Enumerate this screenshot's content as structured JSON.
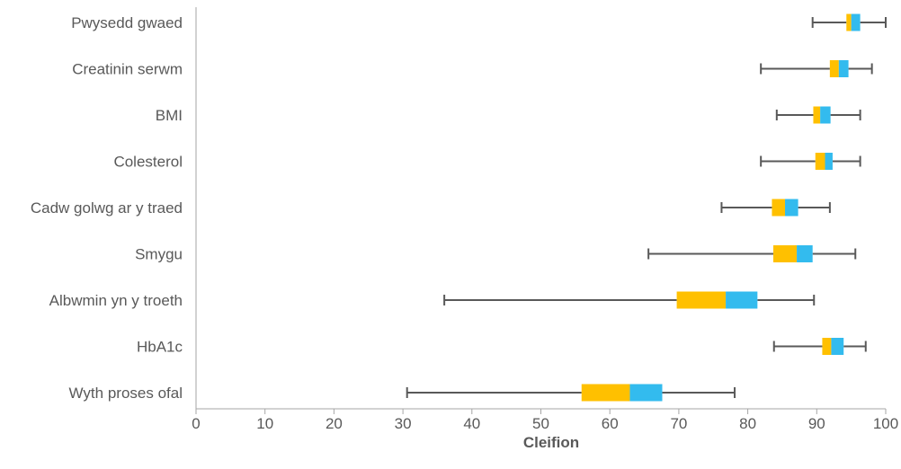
{
  "chart_data": {
    "type": "boxplot",
    "xlabel": "Cleifion",
    "ylabel": "",
    "xlim": [
      0,
      100
    ],
    "xticks": [
      0,
      10,
      20,
      30,
      40,
      50,
      60,
      70,
      80,
      90,
      100
    ],
    "grid": false,
    "categories": [
      "Pwysedd gwaed",
      "Creatinin serwm",
      "BMI",
      "Colesterol",
      "Cadw golwg ar y traed",
      "Smygu",
      "Albwmin yn y troeth",
      "HbA1c",
      "Wyth proses ofal"
    ],
    "series": [
      {
        "min": 89.4,
        "q1": 94.3,
        "median": 95.0,
        "q3": 96.3,
        "max": 100.0
      },
      {
        "min": 81.9,
        "q1": 91.9,
        "median": 93.2,
        "q3": 94.6,
        "max": 98.0
      },
      {
        "min": 84.2,
        "q1": 89.5,
        "median": 90.5,
        "q3": 92.0,
        "max": 96.3
      },
      {
        "min": 81.9,
        "q1": 89.8,
        "median": 91.2,
        "q3": 92.3,
        "max": 96.3
      },
      {
        "min": 76.2,
        "q1": 83.5,
        "median": 85.4,
        "q3": 87.3,
        "max": 91.9
      },
      {
        "min": 65.6,
        "q1": 83.7,
        "median": 87.1,
        "q3": 89.4,
        "max": 95.6
      },
      {
        "min": 36.0,
        "q1": 69.7,
        "median": 76.8,
        "q3": 81.4,
        "max": 89.6
      },
      {
        "min": 83.8,
        "q1": 90.8,
        "median": 92.1,
        "q3": 93.9,
        "max": 97.1
      },
      {
        "min": 30.6,
        "q1": 55.9,
        "median": 62.9,
        "q3": 67.6,
        "max": 78.1
      }
    ],
    "colors": {
      "lower_box": "#FFC000",
      "upper_box": "#33BBEE",
      "whisker": "#595959",
      "axis": "#A6A6A6"
    }
  }
}
